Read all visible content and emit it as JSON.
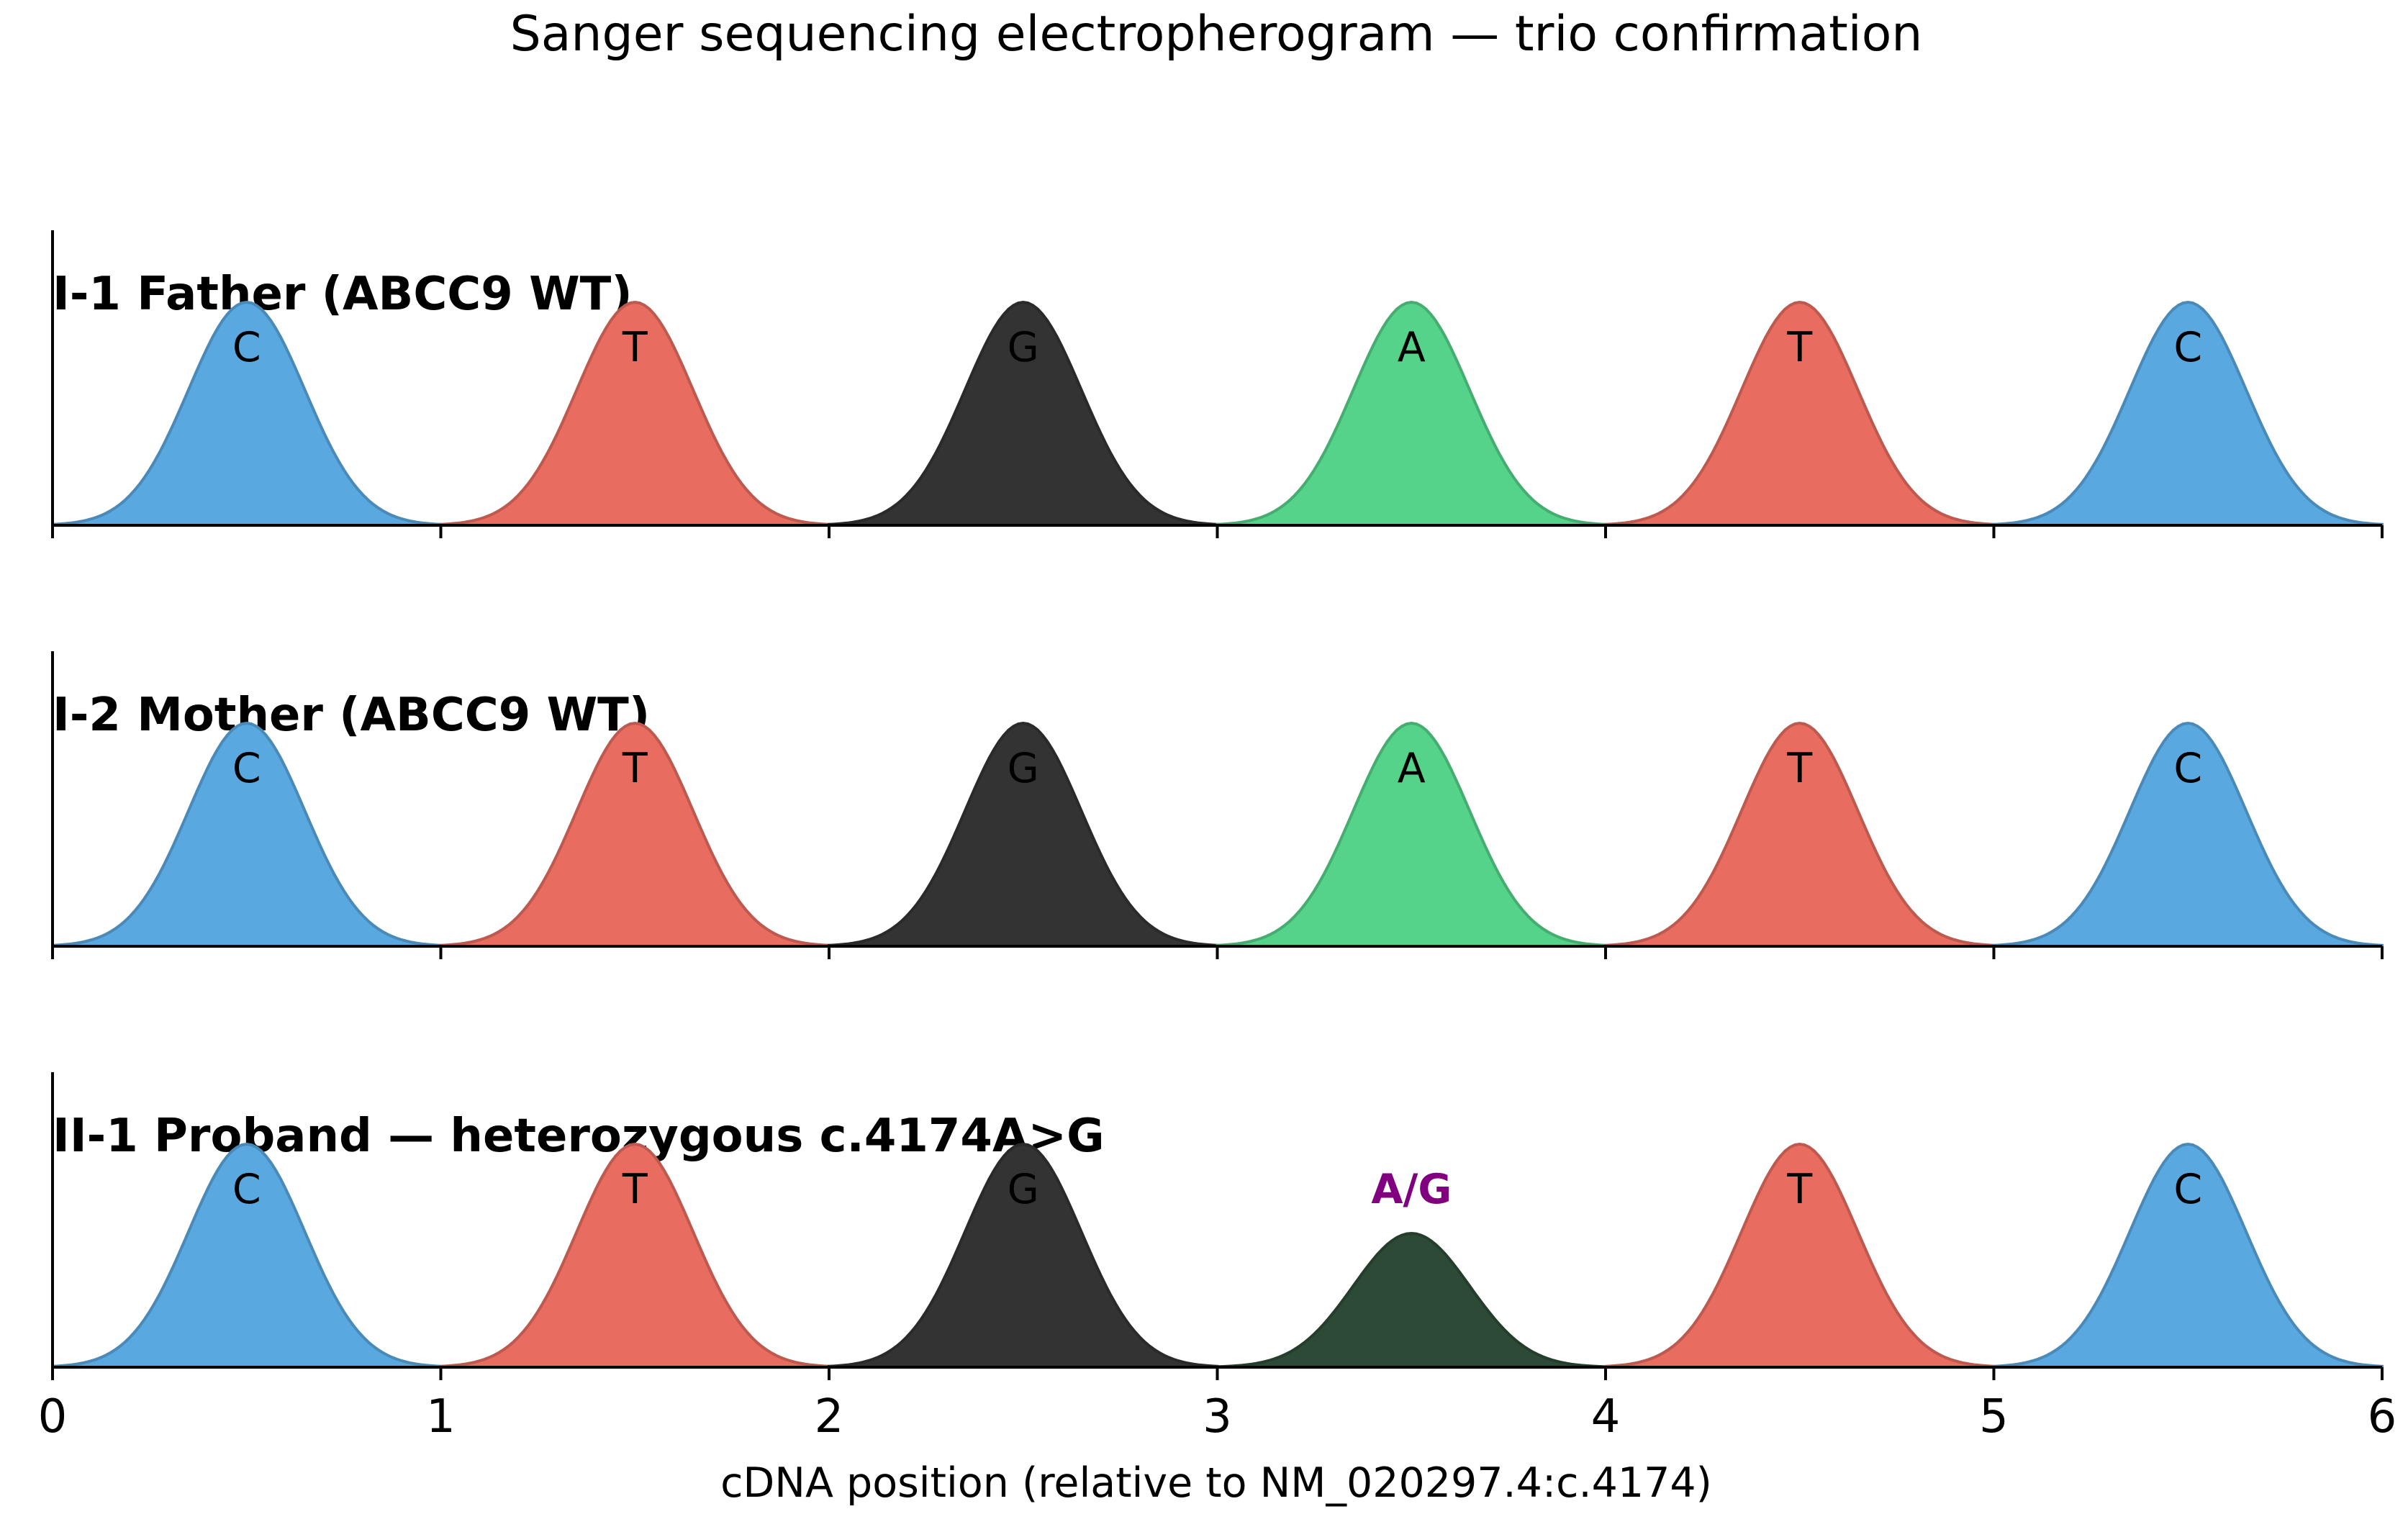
{
  "chart_data": {
    "type": "area",
    "title": "Sanger sequencing electropherogram — trio confirmation",
    "xlabel": "cDNA position (relative to NM_020297.4:c.4174)",
    "xlim": [
      0,
      6
    ],
    "x_ticks": [
      "0",
      "1",
      "2",
      "3",
      "4",
      "5",
      "6"
    ],
    "ylim": [
      0,
      1.15
    ],
    "grid": false,
    "base_colors": {
      "A": "#55d38a",
      "C": "#5aa8e0",
      "G": "#333333",
      "T": "#e86c60",
      "AG": "#2d4a36"
    },
    "annotation_color": "#800080",
    "panels": [
      {
        "title": "I-1 Father (ABCC9 WT)",
        "peaks": [
          {
            "x": 0.5,
            "height": 1.0,
            "call": "C",
            "base": "C"
          },
          {
            "x": 1.5,
            "height": 1.0,
            "call": "T",
            "base": "T"
          },
          {
            "x": 2.5,
            "height": 1.0,
            "call": "G",
            "base": "G"
          },
          {
            "x": 3.5,
            "height": 1.0,
            "call": "A",
            "base": "A"
          },
          {
            "x": 4.5,
            "height": 1.0,
            "call": "T",
            "base": "T"
          },
          {
            "x": 5.5,
            "height": 1.0,
            "call": "C",
            "base": "C"
          }
        ]
      },
      {
        "title": "I-2 Mother (ABCC9 WT)",
        "peaks": [
          {
            "x": 0.5,
            "height": 1.0,
            "call": "C",
            "base": "C"
          },
          {
            "x": 1.5,
            "height": 1.0,
            "call": "T",
            "base": "T"
          },
          {
            "x": 2.5,
            "height": 1.0,
            "call": "G",
            "base": "G"
          },
          {
            "x": 3.5,
            "height": 1.0,
            "call": "A",
            "base": "A"
          },
          {
            "x": 4.5,
            "height": 1.0,
            "call": "T",
            "base": "T"
          },
          {
            "x": 5.5,
            "height": 1.0,
            "call": "C",
            "base": "C"
          }
        ]
      },
      {
        "title": "II-1 Proband — heterozygous c.4174A>G",
        "peaks": [
          {
            "x": 0.5,
            "height": 1.0,
            "call": "C",
            "base": "C"
          },
          {
            "x": 1.5,
            "height": 1.0,
            "call": "T",
            "base": "T"
          },
          {
            "x": 2.5,
            "height": 1.0,
            "call": "G",
            "base": "G"
          },
          {
            "x": 3.5,
            "height": 0.6,
            "call": "A/G",
            "base": "AG",
            "highlight": true
          },
          {
            "x": 4.5,
            "height": 1.0,
            "call": "T",
            "base": "T"
          },
          {
            "x": 5.5,
            "height": 1.0,
            "call": "C",
            "base": "C"
          }
        ]
      }
    ]
  }
}
